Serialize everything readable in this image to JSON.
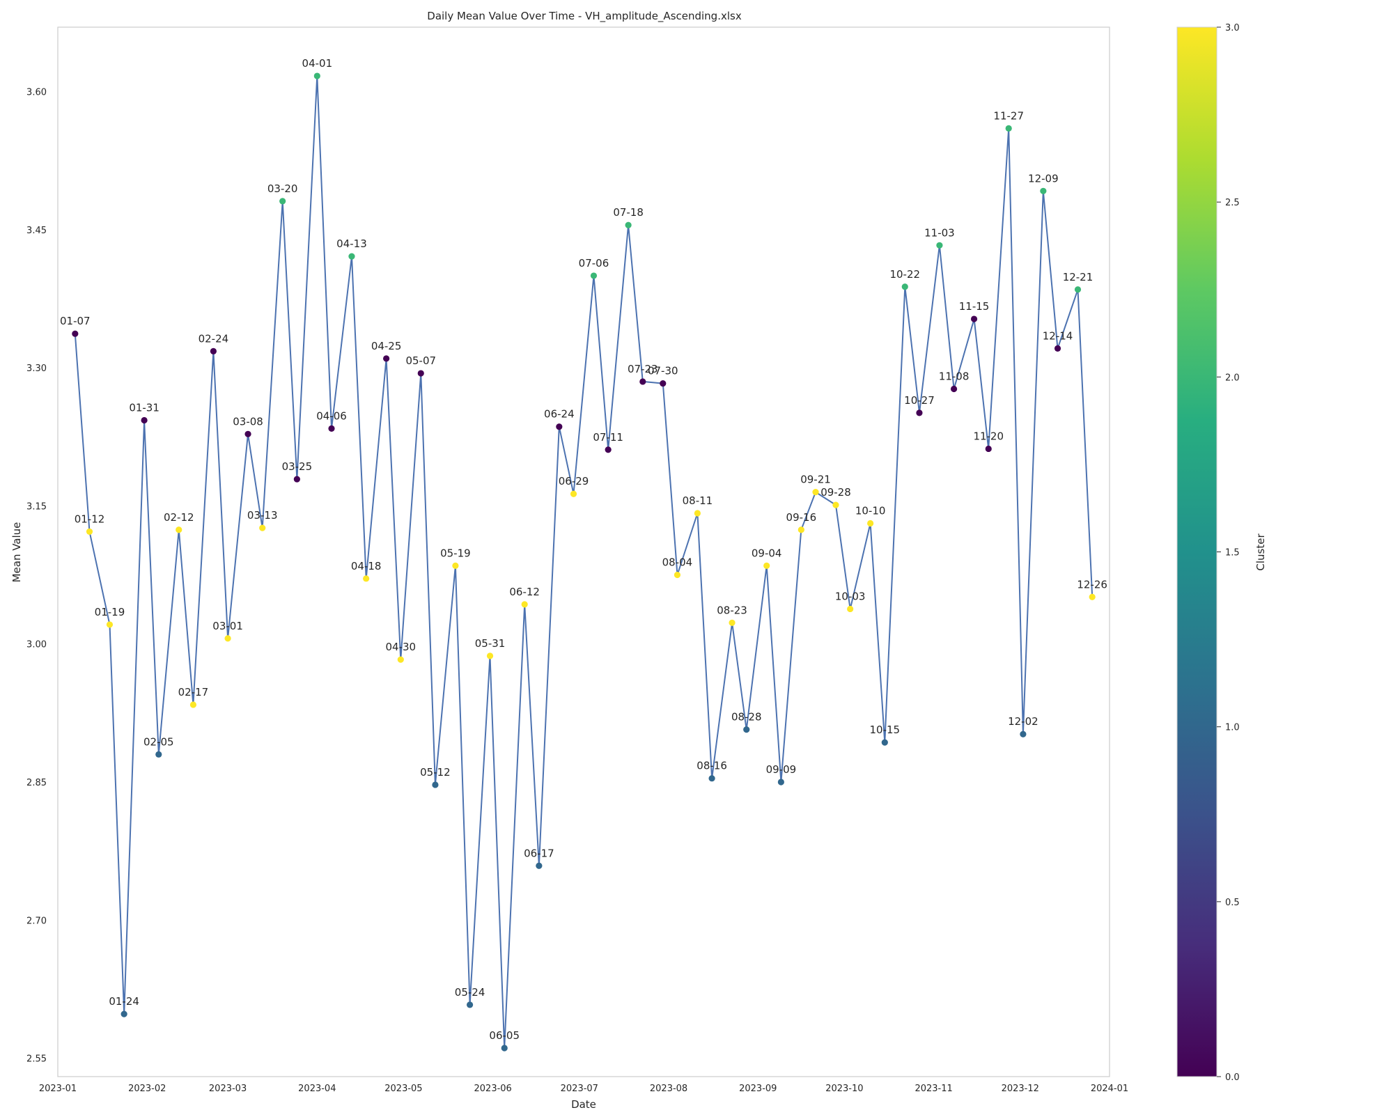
{
  "chart_data": {
    "type": "scatter",
    "title": "Daily Mean Value Over Time - VH_amplitude_Ascending.xlsx",
    "xlabel": "Date",
    "ylabel": "Mean Value",
    "x_range": [
      "2023-01-01",
      "2024-01-01"
    ],
    "ylim": [
      2.53,
      3.67
    ],
    "x_ticks": [
      "2023-01",
      "2023-02",
      "2023-03",
      "2023-04",
      "2023-05",
      "2023-06",
      "2023-07",
      "2023-08",
      "2023-09",
      "2023-10",
      "2023-11",
      "2023-12",
      "2024-01"
    ],
    "y_ticks": [
      "2.55",
      "2.70",
      "2.85",
      "3.00",
      "3.15",
      "3.30",
      "3.45",
      "3.60"
    ],
    "grid": false,
    "line_color": "#4c72b0",
    "colorbar": {
      "label": "Cluster",
      "range": [
        0,
        3
      ],
      "colormap": "viridis",
      "ticks": [
        "0.0",
        "0.5",
        "1.0",
        "1.5",
        "2.0",
        "2.5",
        "3.0"
      ]
    },
    "points": [
      {
        "label": "01-07",
        "date": "2023-01-07",
        "value": 3.337,
        "cluster": 0
      },
      {
        "label": "01-12",
        "date": "2023-01-12",
        "value": 3.122,
        "cluster": 3
      },
      {
        "label": "01-19",
        "date": "2023-01-19",
        "value": 3.021,
        "cluster": 3
      },
      {
        "label": "01-24",
        "date": "2023-01-24",
        "value": 2.598,
        "cluster": 1
      },
      {
        "label": "01-31",
        "date": "2023-01-31",
        "value": 3.243,
        "cluster": 0
      },
      {
        "label": "02-05",
        "date": "2023-02-05",
        "value": 2.88,
        "cluster": 1
      },
      {
        "label": "02-12",
        "date": "2023-02-12",
        "value": 3.124,
        "cluster": 3
      },
      {
        "label": "02-17",
        "date": "2023-02-17",
        "value": 2.934,
        "cluster": 3
      },
      {
        "label": "02-24",
        "date": "2023-02-24",
        "value": 3.318,
        "cluster": 0
      },
      {
        "label": "03-01",
        "date": "2023-03-01",
        "value": 3.006,
        "cluster": 3
      },
      {
        "label": "03-08",
        "date": "2023-03-08",
        "value": 3.228,
        "cluster": 0
      },
      {
        "label": "03-13",
        "date": "2023-03-13",
        "value": 3.126,
        "cluster": 3
      },
      {
        "label": "03-20",
        "date": "2023-03-20",
        "value": 3.481,
        "cluster": 2
      },
      {
        "label": "03-25",
        "date": "2023-03-25",
        "value": 3.179,
        "cluster": 0
      },
      {
        "label": "04-01",
        "date": "2023-04-01",
        "value": 3.617,
        "cluster": 2
      },
      {
        "label": "04-06",
        "date": "2023-04-06",
        "value": 3.234,
        "cluster": 0
      },
      {
        "label": "04-13",
        "date": "2023-04-13",
        "value": 3.421,
        "cluster": 2
      },
      {
        "label": "04-18",
        "date": "2023-04-18",
        "value": 3.071,
        "cluster": 3
      },
      {
        "label": "04-25",
        "date": "2023-04-25",
        "value": 3.31,
        "cluster": 0
      },
      {
        "label": "04-30",
        "date": "2023-04-30",
        "value": 2.983,
        "cluster": 3
      },
      {
        "label": "05-07",
        "date": "2023-05-07",
        "value": 3.294,
        "cluster": 0
      },
      {
        "label": "05-12",
        "date": "2023-05-12",
        "value": 2.847,
        "cluster": 1
      },
      {
        "label": "05-19",
        "date": "2023-05-19",
        "value": 3.085,
        "cluster": 3
      },
      {
        "label": "05-24",
        "date": "2023-05-24",
        "value": 2.608,
        "cluster": 1
      },
      {
        "label": "05-31",
        "date": "2023-05-31",
        "value": 2.987,
        "cluster": 3
      },
      {
        "label": "06-05",
        "date": "2023-06-05",
        "value": 2.561,
        "cluster": 1
      },
      {
        "label": "06-12",
        "date": "2023-06-12",
        "value": 3.043,
        "cluster": 3
      },
      {
        "label": "06-17",
        "date": "2023-06-17",
        "value": 2.759,
        "cluster": 1
      },
      {
        "label": "06-24",
        "date": "2023-06-24",
        "value": 3.236,
        "cluster": 0
      },
      {
        "label": "06-29",
        "date": "2023-06-29",
        "value": 3.163,
        "cluster": 3
      },
      {
        "label": "07-06",
        "date": "2023-07-06",
        "value": 3.4,
        "cluster": 2
      },
      {
        "label": "07-11",
        "date": "2023-07-11",
        "value": 3.211,
        "cluster": 0
      },
      {
        "label": "07-18",
        "date": "2023-07-18",
        "value": 3.455,
        "cluster": 2
      },
      {
        "label": "07-23",
        "date": "2023-07-23",
        "value": 3.285,
        "cluster": 0
      },
      {
        "label": "07-30",
        "date": "2023-07-30",
        "value": 3.283,
        "cluster": 0
      },
      {
        "label": "08-04",
        "date": "2023-08-04",
        "value": 3.075,
        "cluster": 3
      },
      {
        "label": "08-11",
        "date": "2023-08-11",
        "value": 3.142,
        "cluster": 3
      },
      {
        "label": "08-16",
        "date": "2023-08-16",
        "value": 2.854,
        "cluster": 1
      },
      {
        "label": "08-23",
        "date": "2023-08-23",
        "value": 3.023,
        "cluster": 3
      },
      {
        "label": "08-28",
        "date": "2023-08-28",
        "value": 2.907,
        "cluster": 1
      },
      {
        "label": "09-04",
        "date": "2023-09-04",
        "value": 3.085,
        "cluster": 3
      },
      {
        "label": "09-09",
        "date": "2023-09-09",
        "value": 2.85,
        "cluster": 1
      },
      {
        "label": "09-16",
        "date": "2023-09-16",
        "value": 3.124,
        "cluster": 3
      },
      {
        "label": "09-21",
        "date": "2023-09-21",
        "value": 3.165,
        "cluster": 3
      },
      {
        "label": "09-28",
        "date": "2023-09-28",
        "value": 3.151,
        "cluster": 3
      },
      {
        "label": "10-03",
        "date": "2023-10-03",
        "value": 3.038,
        "cluster": 3
      },
      {
        "label": "10-10",
        "date": "2023-10-10",
        "value": 3.131,
        "cluster": 3
      },
      {
        "label": "10-15",
        "date": "2023-10-15",
        "value": 2.893,
        "cluster": 1
      },
      {
        "label": "10-22",
        "date": "2023-10-22",
        "value": 3.388,
        "cluster": 2
      },
      {
        "label": "10-27",
        "date": "2023-10-27",
        "value": 3.251,
        "cluster": 0
      },
      {
        "label": "11-03",
        "date": "2023-11-03",
        "value": 3.433,
        "cluster": 2
      },
      {
        "label": "11-08",
        "date": "2023-11-08",
        "value": 3.277,
        "cluster": 0
      },
      {
        "label": "11-15",
        "date": "2023-11-15",
        "value": 3.353,
        "cluster": 0
      },
      {
        "label": "11-20",
        "date": "2023-11-20",
        "value": 3.212,
        "cluster": 0
      },
      {
        "label": "11-27",
        "date": "2023-11-27",
        "value": 3.56,
        "cluster": 2
      },
      {
        "label": "12-02",
        "date": "2023-12-02",
        "value": 2.902,
        "cluster": 1
      },
      {
        "label": "12-09",
        "date": "2023-12-09",
        "value": 3.492,
        "cluster": 2
      },
      {
        "label": "12-14",
        "date": "2023-12-14",
        "value": 3.321,
        "cluster": 0
      },
      {
        "label": "12-21",
        "date": "2023-12-21",
        "value": 3.385,
        "cluster": 2
      },
      {
        "label": "12-26",
        "date": "2023-12-26",
        "value": 3.051,
        "cluster": 3
      }
    ]
  }
}
